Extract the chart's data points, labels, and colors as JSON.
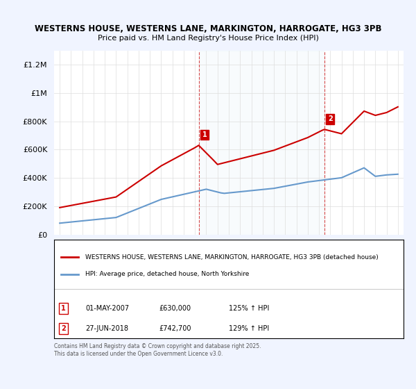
{
  "title_line1": "WESTERNS HOUSE, WESTERNS LANE, MARKINGTON, HARROGATE, HG3 3PB",
  "title_line2": "Price paid vs. HM Land Registry's House Price Index (HPI)",
  "background_color": "#f0f4ff",
  "plot_bg_color": "#ffffff",
  "red_color": "#cc0000",
  "blue_color": "#6699cc",
  "annotation_box_color": "#cc0000",
  "ylim": [
    0,
    1300000
  ],
  "yticks": [
    0,
    200000,
    400000,
    600000,
    800000,
    1000000,
    1200000
  ],
  "ytick_labels": [
    "£0",
    "£200K",
    "£400K",
    "£600K",
    "£800K",
    "£1M",
    "£1.2M"
  ],
  "xmin": 1994.5,
  "xmax": 2025.5,
  "xticks": [
    1995,
    1996,
    1997,
    1998,
    1999,
    2000,
    2001,
    2002,
    2003,
    2004,
    2005,
    2006,
    2007,
    2008,
    2009,
    2010,
    2011,
    2012,
    2013,
    2014,
    2015,
    2016,
    2017,
    2018,
    2019,
    2020,
    2021,
    2022,
    2023,
    2024,
    2025
  ],
  "sale1_x": 2007.33,
  "sale1_y": 630000,
  "sale2_x": 2018.49,
  "sale2_y": 742700,
  "legend_label_red": "WESTERNS HOUSE, WESTERNS LANE, MARKINGTON, HARROGATE, HG3 3PB (detached house)",
  "legend_label_blue": "HPI: Average price, detached house, North Yorkshire",
  "annotation1_label": "1",
  "annotation2_label": "2",
  "note1_date": "01-MAY-2007",
  "note1_price": "£630,000",
  "note1_hpi": "125% ↑ HPI",
  "note2_date": "27-JUN-2018",
  "note2_price": "£742,700",
  "note2_hpi": "129% ↑ HPI",
  "footer": "Contains HM Land Registry data © Crown copyright and database right 2025.\nThis data is licensed under the Open Government Licence v3.0.",
  "red_x": [
    1995.0,
    1995.1,
    1995.2,
    1995.3,
    1995.4,
    1995.5,
    1995.6,
    1995.7,
    1995.8,
    1995.9,
    1996.0,
    1996.1,
    1996.2,
    1996.3,
    1996.4,
    1996.5,
    1996.6,
    1996.7,
    1996.8,
    1996.9,
    1997.0,
    1997.1,
    1997.2,
    1997.3,
    1997.4,
    1997.5,
    1997.6,
    1997.7,
    1997.8,
    1997.9,
    1998.0,
    1998.2,
    1998.4,
    1998.6,
    1998.8,
    1999.0,
    1999.2,
    1999.4,
    1999.6,
    1999.8,
    2000.0,
    2000.2,
    2000.4,
    2000.6,
    2000.8,
    2001.0,
    2001.2,
    2001.4,
    2001.6,
    2001.8,
    2002.0,
    2002.2,
    2002.4,
    2002.6,
    2002.8,
    2003.0,
    2003.2,
    2003.4,
    2003.6,
    2003.8,
    2004.0,
    2004.2,
    2004.4,
    2004.6,
    2004.8,
    2005.0,
    2005.2,
    2005.4,
    2005.6,
    2005.8,
    2006.0,
    2006.2,
    2006.4,
    2006.6,
    2006.8,
    2007.0,
    2007.33,
    2007.5,
    2007.8,
    2008.0,
    2008.3,
    2008.6,
    2009.0,
    2009.3,
    2009.6,
    2010.0,
    2010.3,
    2010.6,
    2011.0,
    2011.3,
    2011.6,
    2012.0,
    2012.3,
    2012.6,
    2013.0,
    2013.3,
    2013.6,
    2014.0,
    2014.3,
    2014.6,
    2015.0,
    2015.3,
    2015.6,
    2016.0,
    2016.3,
    2016.6,
    2017.0,
    2017.3,
    2017.6,
    2018.0,
    2018.3,
    2018.49,
    2018.7,
    2019.0,
    2019.3,
    2019.6,
    2020.0,
    2020.3,
    2020.6,
    2021.0,
    2021.3,
    2021.6,
    2022.0,
    2022.3,
    2022.6,
    2023.0,
    2023.3,
    2023.6,
    2024.0,
    2024.3,
    2024.6,
    2025.0
  ],
  "blue_x": [
    1995.0,
    1995.3,
    1995.6,
    1996.0,
    1996.3,
    1996.6,
    1997.0,
    1997.3,
    1997.6,
    1998.0,
    1998.3,
    1998.6,
    1999.0,
    1999.3,
    1999.6,
    2000.0,
    2000.3,
    2000.6,
    2001.0,
    2001.3,
    2001.6,
    2002.0,
    2002.3,
    2002.6,
    2003.0,
    2003.3,
    2003.6,
    2004.0,
    2004.3,
    2004.6,
    2005.0,
    2005.3,
    2005.6,
    2006.0,
    2006.3,
    2006.6,
    2007.0,
    2007.3,
    2007.6,
    2008.0,
    2008.3,
    2008.6,
    2009.0,
    2009.3,
    2009.6,
    2010.0,
    2010.3,
    2010.6,
    2011.0,
    2011.3,
    2011.6,
    2012.0,
    2012.3,
    2012.6,
    2013.0,
    2013.3,
    2013.6,
    2014.0,
    2014.3,
    2014.6,
    2015.0,
    2015.3,
    2015.6,
    2016.0,
    2016.3,
    2016.6,
    2017.0,
    2017.3,
    2017.6,
    2018.0,
    2018.3,
    2018.6,
    2019.0,
    2019.3,
    2019.6,
    2020.0,
    2020.3,
    2020.6,
    2021.0,
    2021.3,
    2021.6,
    2022.0,
    2022.3,
    2022.6,
    2023.0,
    2023.3,
    2023.6,
    2024.0,
    2024.3,
    2024.6,
    2025.0
  ]
}
